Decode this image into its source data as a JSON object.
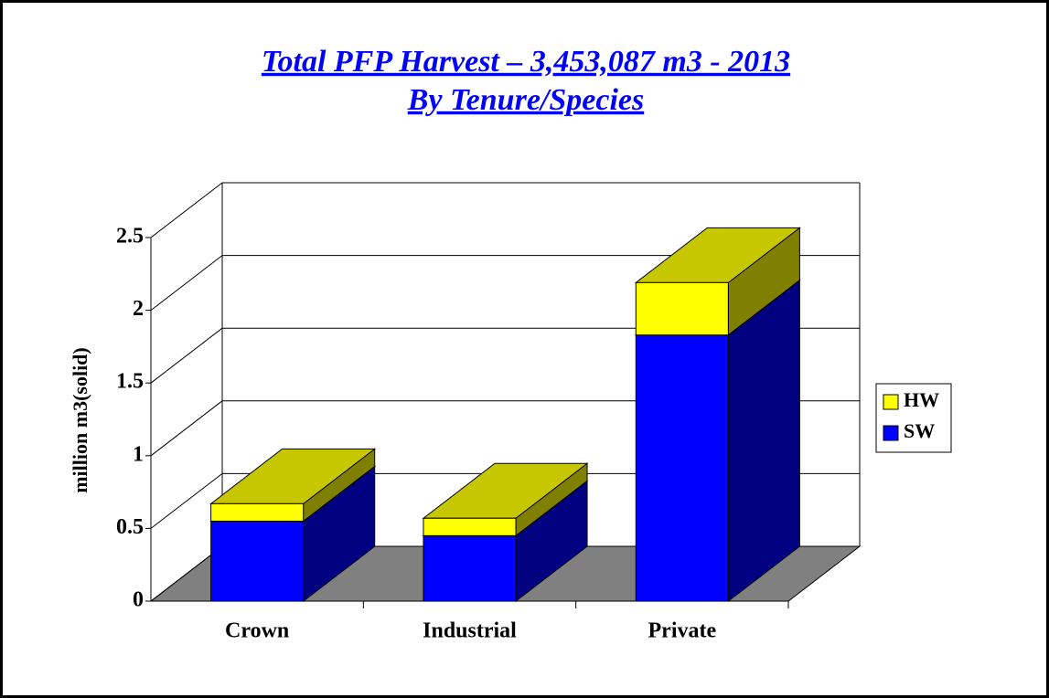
{
  "chart_data": {
    "type": "bar3d_stacked",
    "title": "Total PFP Harvest – 3,453,087 m3 - 2013",
    "subtitle": "By Tenure/Species ",
    "y_label": "million m3(solid)",
    "categories": [
      "Crown",
      "Industrial",
      "Private"
    ],
    "series": [
      {
        "name": "SW",
        "color": "#0000ff",
        "values": [
          0.55,
          0.45,
          1.83
        ]
      },
      {
        "name": "HW",
        "color": "#ffff00",
        "values": [
          0.12,
          0.12,
          0.36
        ]
      }
    ],
    "ylim": [
      0,
      2.5
    ],
    "yticks": [
      0,
      0.5,
      1,
      1.5,
      2,
      2.5
    ],
    "grid": true
  }
}
